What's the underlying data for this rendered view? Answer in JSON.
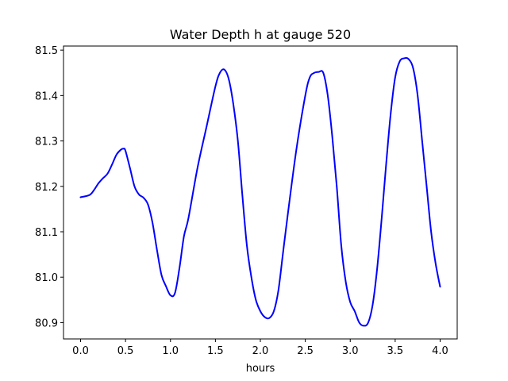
{
  "chart_data": {
    "type": "line",
    "title": "Water Depth h at gauge 520",
    "xlabel": "hours",
    "ylabel": "",
    "xlim": [
      -0.19,
      4.19
    ],
    "ylim": [
      80.864,
      81.509
    ],
    "xticks": [
      0.0,
      0.5,
      1.0,
      1.5,
      2.0,
      2.5,
      3.0,
      3.5,
      4.0
    ],
    "xtick_labels": [
      "0.0",
      "0.5",
      "1.0",
      "1.5",
      "2.0",
      "2.5",
      "3.0",
      "3.5",
      "4.0"
    ],
    "yticks": [
      80.9,
      81.0,
      81.1,
      81.2,
      81.3,
      81.4,
      81.5
    ],
    "ytick_labels": [
      "80.9",
      "81.0",
      "81.1",
      "81.2",
      "81.3",
      "81.4",
      "81.5"
    ],
    "grid": false,
    "legend": "none",
    "series": [
      {
        "color": "#0000ff",
        "x": [
          0.0,
          0.1,
          0.15,
          0.2,
          0.25,
          0.3,
          0.35,
          0.4,
          0.45,
          0.48,
          0.5,
          0.55,
          0.6,
          0.65,
          0.7,
          0.75,
          0.8,
          0.85,
          0.9,
          0.95,
          1.0,
          1.05,
          1.1,
          1.15,
          1.2,
          1.3,
          1.4,
          1.5,
          1.55,
          1.6,
          1.65,
          1.7,
          1.75,
          1.8,
          1.85,
          1.9,
          1.95,
          2.0,
          2.05,
          2.1,
          2.15,
          2.2,
          2.25,
          2.3,
          2.4,
          2.5,
          2.55,
          2.6,
          2.65,
          2.7,
          2.75,
          2.8,
          2.85,
          2.9,
          2.95,
          3.0,
          3.05,
          3.1,
          3.15,
          3.2,
          3.25,
          3.3,
          3.35,
          3.4,
          3.45,
          3.5,
          3.55,
          3.6,
          3.65,
          3.7,
          3.75,
          3.8,
          3.85,
          3.9,
          3.95,
          4.0
        ],
        "y": [
          81.176,
          81.181,
          81.192,
          81.207,
          81.218,
          81.228,
          81.248,
          81.27,
          81.281,
          81.283,
          81.278,
          81.24,
          81.2,
          81.182,
          81.175,
          81.16,
          81.12,
          81.06,
          81.005,
          80.98,
          80.96,
          80.965,
          81.02,
          81.09,
          81.13,
          81.24,
          81.33,
          81.42,
          81.45,
          81.457,
          81.435,
          81.38,
          81.3,
          81.18,
          81.07,
          81.0,
          80.95,
          80.925,
          80.912,
          80.91,
          80.925,
          80.97,
          81.05,
          81.13,
          81.28,
          81.4,
          81.44,
          81.45,
          81.452,
          81.45,
          81.4,
          81.31,
          81.2,
          81.07,
          80.99,
          80.945,
          80.925,
          80.9,
          80.893,
          80.9,
          80.94,
          81.02,
          81.13,
          81.25,
          81.36,
          81.44,
          81.475,
          81.482,
          81.48,
          81.46,
          81.4,
          81.3,
          81.2,
          81.1,
          81.03,
          80.979
        ]
      }
    ]
  }
}
